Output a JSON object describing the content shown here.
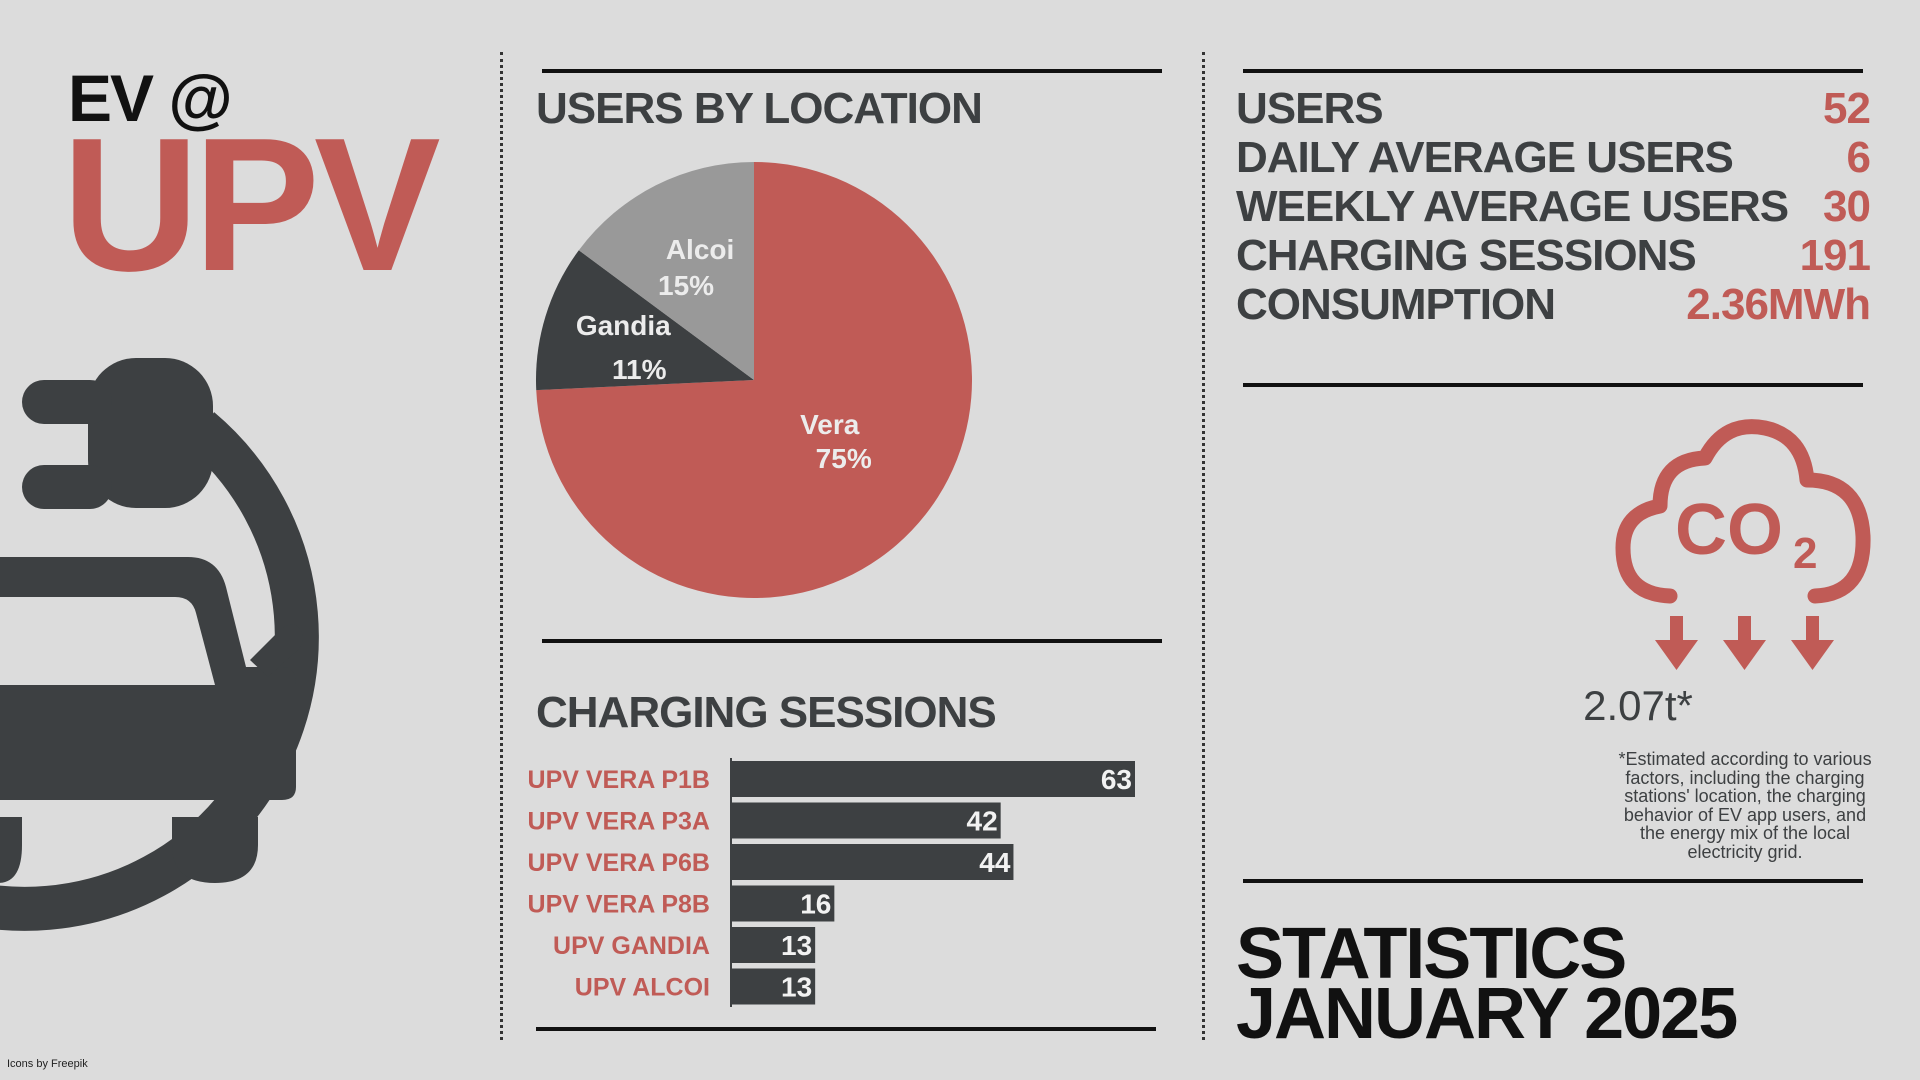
{
  "brand": {
    "prefix": "EV @",
    "name": "UPV"
  },
  "credit": "Icons by Freepik",
  "colors": {
    "accent": "#c05b56",
    "dark": "#3d4042",
    "grey": "#999999",
    "background": "#dcdcdc"
  },
  "icons": {
    "main": "ev-car-plug-icon",
    "co2": "co2-cloud-icon"
  },
  "chart_data": [
    {
      "type": "pie",
      "title": "USERS BY LOCATION",
      "categories": [
        "Vera",
        "Gandia",
        "Alcoi"
      ],
      "values": [
        75,
        11,
        15
      ],
      "labels": [
        "75%",
        "11%",
        "15%"
      ],
      "colors": [
        "#c05b56",
        "#3d4042",
        "#999999"
      ]
    },
    {
      "type": "bar",
      "orientation": "horizontal",
      "title": "CHARGING SESSIONS",
      "categories": [
        "UPV VERA P1B",
        "UPV VERA P3A",
        "UPV VERA P6B",
        "UPV VERA P8B",
        "UPV GANDIA",
        "UPV ALCOI"
      ],
      "values": [
        63,
        42,
        44,
        16,
        13,
        13
      ],
      "xlim": [
        0,
        63
      ]
    }
  ],
  "stats": [
    {
      "label": "USERS",
      "value": "52"
    },
    {
      "label": "DAILY AVERAGE USERS",
      "value": "6"
    },
    {
      "label": "WEEKLY AVERAGE USERS",
      "value": "30"
    },
    {
      "label": "CHARGING SESSIONS",
      "value": "191"
    },
    {
      "label": "CONSUMPTION",
      "value": "2.36MWh"
    }
  ],
  "co2": {
    "value": "2.07t*",
    "note": "*Estimated according to various factors, including the charging stations' location, the charging behavior of EV app users, and the energy mix of the local electricity grid."
  },
  "footer_title": {
    "line1": "STATISTICS",
    "line2": "JANUARY 2025"
  }
}
